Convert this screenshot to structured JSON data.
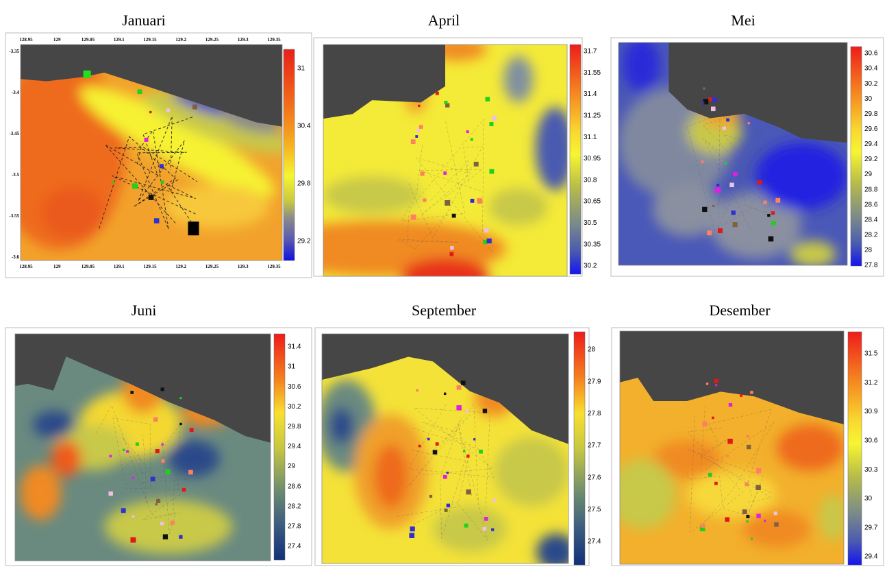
{
  "panels": [
    {
      "title": "Januari",
      "colorbar_ticks": [
        31,
        30.4,
        29.8,
        29.2
      ],
      "x_ticks": [
        128.95,
        129,
        129.05,
        129.1,
        129.15,
        129.2,
        129.25,
        129.3,
        129.35
      ],
      "y_ticks": [
        -3.35,
        -3.4,
        -3.45,
        -3.5,
        -3.55,
        -3.6
      ]
    },
    {
      "title": "April",
      "colorbar_ticks": [
        31.7,
        31.55,
        31.4,
        31.25,
        31.1,
        30.95,
        30.8,
        30.65,
        30.5,
        30.35,
        30.2
      ]
    },
    {
      "title": "Mei",
      "colorbar_ticks": [
        30.6,
        30.4,
        30.2,
        30,
        29.8,
        29.6,
        29.4,
        29.2,
        29,
        28.8,
        28.6,
        28.4,
        28.2,
        28,
        27.8
      ]
    },
    {
      "title": "Juni",
      "colorbar_ticks": [
        31.4,
        31,
        30.6,
        30.2,
        29.8,
        29.4,
        29,
        28.6,
        28.2,
        27.8,
        27.4
      ]
    },
    {
      "title": "September",
      "colorbar_ticks": [
        28,
        27.9,
        27.8,
        27.7,
        27.6,
        27.5,
        27.4
      ]
    },
    {
      "title": "Desember",
      "colorbar_ticks": [
        31.5,
        31.2,
        30.9,
        30.6,
        30.3,
        30,
        29.7,
        29.4
      ]
    }
  ]
}
